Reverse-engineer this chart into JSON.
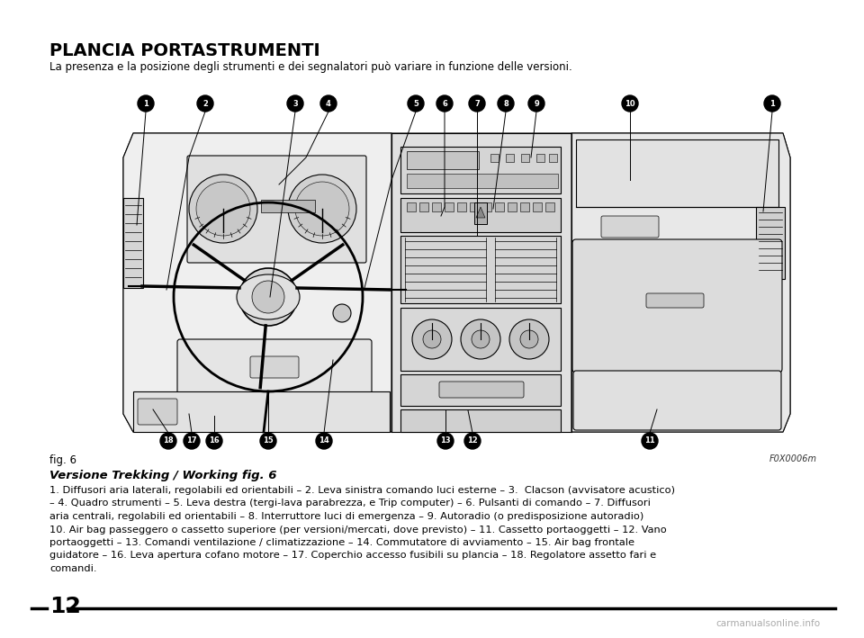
{
  "title": "PLANCIA PORTASTRUMENTI",
  "subtitle": "La presenza e la posizione degli strumenti e dei segnalatori può variare in funzione delle versioni.",
  "fig_label": "fig. 6",
  "fig_code": "F0X0006m",
  "section_heading": "Versione Trekking / Working fig. 6",
  "body_text": [
    "1. Diffusori aria laterali, regolabili ed orientabili – 2. Leva sinistra comando luci esterne – 3.  Clacson (avvisatore acustico)",
    "– 4. Quadro strumenti – 5. Leva destra (tergi-lava parabrezza, e Trip computer) – 6. Pulsanti di comando – 7. Diffusori",
    "aria centrali, regolabili ed orientabili – 8. Interruttore luci di emergenza – 9. Autoradio (o predisposizione autoradio)",
    "10. Air bag passeggero o cassetto superiore (per versioni/mercati, dove previsto) – 11. Cassetto portaoggetti – 12. Vano",
    "portaoggetti – 13. Comandi ventilazione / climatizzazione – 14. Commutatore di avviamento – 15. Air bag frontale",
    "guidatore – 16. Leva apertura cofano motore – 17. Coperchio accesso fusibili su plancia – 18. Regolatore assetto fari e",
    "comandi."
  ],
  "page_number": "12",
  "bg_color": "#ffffff",
  "text_color": "#000000",
  "watermark": "carmanualsonline.info",
  "title_fontsize": 14,
  "subtitle_fontsize": 8.5,
  "body_fontsize": 8.2,
  "heading_fontsize": 9.5
}
